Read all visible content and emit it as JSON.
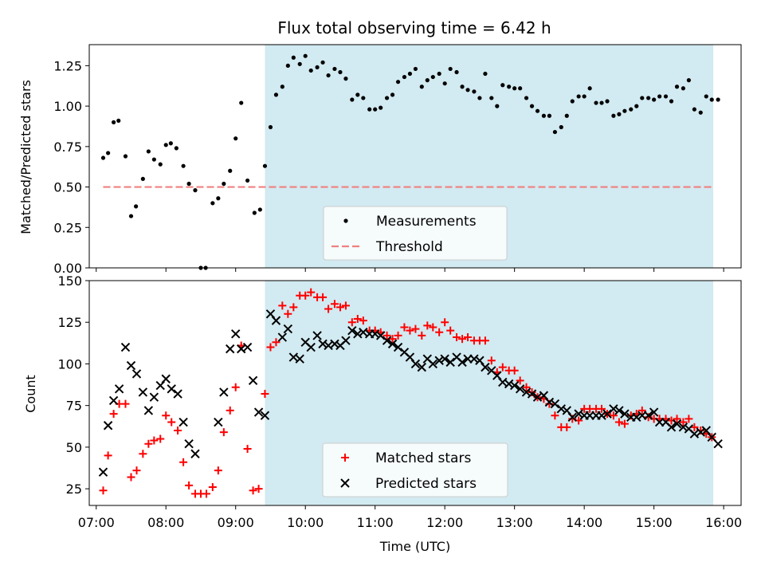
{
  "title": "Flux total observing time = 6.42 h",
  "colors": {
    "shade": "#add8e6",
    "threshold": "#f08080",
    "matched": "#ff0000",
    "predicted": "#000000",
    "measurement": "#000000"
  },
  "chart_data": [
    {
      "type": "scatter",
      "panel": "top",
      "ylabel": "Matched/Predicted stars",
      "xlim": [
        6.9,
        16.25
      ],
      "ylim": [
        0,
        1.38
      ],
      "yticks": [
        0.0,
        0.25,
        0.5,
        0.75,
        1.0,
        1.25
      ],
      "ytick_labels": [
        "0.00",
        "0.25",
        "0.50",
        "0.75",
        "1.00",
        "1.25"
      ],
      "shaded_span": [
        9.42,
        15.85
      ],
      "threshold": {
        "name": "Threshold",
        "y": 0.5,
        "x": [
          7.1,
          15.85
        ]
      },
      "legend": {
        "position": "lower-center",
        "entries": [
          "Measurements",
          "Threshold"
        ]
      },
      "series": [
        {
          "name": "Measurements",
          "marker": "dot",
          "x": [
            7.1,
            7.17,
            7.25,
            7.32,
            7.42,
            7.5,
            7.57,
            7.67,
            7.75,
            7.83,
            7.92,
            8.0,
            8.07,
            8.15,
            8.25,
            8.33,
            8.42,
            8.5,
            8.57,
            8.67,
            8.75,
            8.83,
            8.92,
            9.0,
            9.08,
            9.17,
            9.27,
            9.35,
            9.42,
            9.5,
            9.58,
            9.67,
            9.75,
            9.83,
            9.92,
            10.0,
            10.08,
            10.17,
            10.25,
            10.33,
            10.42,
            10.5,
            10.58,
            10.67,
            10.75,
            10.83,
            10.92,
            11.0,
            11.08,
            11.17,
            11.25,
            11.33,
            11.42,
            11.5,
            11.58,
            11.67,
            11.75,
            11.83,
            11.92,
            12.0,
            12.08,
            12.17,
            12.25,
            12.33,
            12.42,
            12.5,
            12.58,
            12.67,
            12.75,
            12.83,
            12.92,
            13.0,
            13.08,
            13.17,
            13.25,
            13.33,
            13.42,
            13.5,
            13.58,
            13.67,
            13.75,
            13.83,
            13.92,
            14.0,
            14.08,
            14.17,
            14.25,
            14.33,
            14.42,
            14.5,
            14.58,
            14.67,
            14.75,
            14.83,
            14.92,
            15.0,
            15.08,
            15.17,
            15.25,
            15.33,
            15.42,
            15.5,
            15.58,
            15.67,
            15.75,
            15.83,
            15.92
          ],
          "y": [
            0.68,
            0.71,
            0.9,
            0.91,
            0.69,
            0.32,
            0.38,
            0.55,
            0.72,
            0.67,
            0.64,
            0.76,
            0.77,
            0.74,
            0.63,
            0.52,
            0.48,
            0.0,
            0.0,
            0.4,
            0.43,
            0.52,
            0.6,
            0.8,
            1.02,
            0.54,
            0.34,
            0.36,
            0.63,
            0.87,
            1.07,
            1.12,
            1.25,
            1.3,
            1.26,
            1.31,
            1.22,
            1.24,
            1.27,
            1.19,
            1.23,
            1.21,
            1.17,
            1.04,
            1.07,
            1.05,
            0.98,
            0.98,
            0.99,
            1.05,
            1.07,
            1.15,
            1.18,
            1.2,
            1.23,
            1.12,
            1.16,
            1.18,
            1.2,
            1.14,
            1.23,
            1.21,
            1.12,
            1.1,
            1.09,
            1.05,
            1.2,
            1.05,
            1.0,
            1.13,
            1.12,
            1.11,
            1.11,
            1.05,
            1.0,
            0.97,
            0.94,
            0.94,
            0.84,
            0.87,
            0.94,
            1.03,
            1.06,
            1.06,
            1.11,
            1.02,
            1.02,
            1.03,
            0.94,
            0.95,
            0.97,
            0.98,
            1.0,
            1.05,
            1.05,
            1.04,
            1.06,
            1.06,
            1.03,
            1.12,
            1.11,
            1.16,
            0.98,
            0.96,
            1.06,
            1.04,
            1.04
          ]
        }
      ]
    },
    {
      "type": "scatter",
      "panel": "bottom",
      "ylabel": "Count",
      "xlabel": "Time (UTC)",
      "xlim": [
        6.9,
        16.25
      ],
      "ylim": [
        15,
        150
      ],
      "yticks": [
        25,
        50,
        75,
        100,
        125,
        150
      ],
      "xticks": [
        7,
        8,
        9,
        10,
        11,
        12,
        13,
        14,
        15,
        16
      ],
      "xtick_labels": [
        "07:00",
        "08:00",
        "09:00",
        "10:00",
        "11:00",
        "12:00",
        "13:00",
        "14:00",
        "15:00",
        "16:00"
      ],
      "shaded_span": [
        9.42,
        15.85
      ],
      "legend": {
        "position": "lower-center",
        "entries": [
          "Matched stars",
          "Predicted stars"
        ]
      },
      "series": [
        {
          "name": "Matched stars",
          "marker": "plus",
          "x": [
            7.1,
            7.17,
            7.25,
            7.33,
            7.42,
            7.5,
            7.58,
            7.67,
            7.75,
            7.83,
            7.92,
            8.0,
            8.08,
            8.17,
            8.25,
            8.33,
            8.42,
            8.5,
            8.58,
            8.67,
            8.75,
            8.83,
            8.92,
            9.0,
            9.08,
            9.17,
            9.25,
            9.33,
            9.42,
            9.5,
            9.58,
            9.67,
            9.75,
            9.83,
            9.92,
            10.0,
            10.08,
            10.17,
            10.25,
            10.33,
            10.42,
            10.5,
            10.58,
            10.67,
            10.75,
            10.83,
            10.92,
            11.0,
            11.08,
            11.17,
            11.25,
            11.33,
            11.42,
            11.5,
            11.58,
            11.67,
            11.75,
            11.83,
            11.92,
            12.0,
            12.08,
            12.17,
            12.25,
            12.33,
            12.42,
            12.5,
            12.58,
            12.67,
            12.75,
            12.83,
            12.92,
            13.0,
            13.08,
            13.17,
            13.25,
            13.33,
            13.42,
            13.5,
            13.58,
            13.67,
            13.75,
            13.83,
            13.92,
            14.0,
            14.08,
            14.17,
            14.25,
            14.33,
            14.42,
            14.5,
            14.58,
            14.67,
            14.75,
            14.83,
            14.92,
            15.0,
            15.08,
            15.17,
            15.25,
            15.33,
            15.42,
            15.5,
            15.58,
            15.67,
            15.75,
            15.83
          ],
          "y": [
            24,
            45,
            70,
            76,
            76,
            32,
            36,
            46,
            52,
            54,
            55,
            69,
            65,
            60,
            41,
            27,
            22,
            22,
            22,
            26,
            36,
            59,
            72,
            86,
            111,
            49,
            24,
            25,
            82,
            110,
            113,
            135,
            130,
            134,
            141,
            141,
            143,
            140,
            140,
            133,
            136,
            134,
            135,
            125,
            127,
            126,
            120,
            120,
            119,
            117,
            115,
            117,
            122,
            120,
            121,
            117,
            123,
            122,
            119,
            125,
            120,
            116,
            115,
            116,
            114,
            114,
            114,
            102,
            95,
            98,
            96,
            96,
            90,
            86,
            83,
            80,
            79,
            76,
            69,
            62,
            62,
            67,
            66,
            73,
            73,
            73,
            73,
            70,
            69,
            65,
            64,
            69,
            70,
            72,
            68,
            67,
            67,
            67,
            66,
            67,
            65,
            67,
            62,
            60,
            58,
            56
          ]
        },
        {
          "name": "Predicted stars",
          "marker": "x",
          "x": [
            7.1,
            7.17,
            7.25,
            7.33,
            7.42,
            7.5,
            7.58,
            7.67,
            7.75,
            7.83,
            7.92,
            8.0,
            8.08,
            8.17,
            8.25,
            8.33,
            8.42,
            8.75,
            8.83,
            8.92,
            9.0,
            9.08,
            9.17,
            9.25,
            9.33,
            9.42,
            9.5,
            9.58,
            9.67,
            9.75,
            9.83,
            9.92,
            10.0,
            10.08,
            10.17,
            10.25,
            10.33,
            10.42,
            10.5,
            10.58,
            10.67,
            10.75,
            10.83,
            10.92,
            11.0,
            11.08,
            11.17,
            11.25,
            11.33,
            11.42,
            11.5,
            11.58,
            11.67,
            11.75,
            11.83,
            11.92,
            12.0,
            12.08,
            12.17,
            12.25,
            12.33,
            12.42,
            12.5,
            12.58,
            12.67,
            12.75,
            12.83,
            12.92,
            13.0,
            13.08,
            13.17,
            13.25,
            13.33,
            13.42,
            13.5,
            13.58,
            13.67,
            13.75,
            13.83,
            13.92,
            14.0,
            14.08,
            14.17,
            14.25,
            14.33,
            14.42,
            14.5,
            14.58,
            14.67,
            14.75,
            14.83,
            14.92,
            15.0,
            15.08,
            15.17,
            15.25,
            15.33,
            15.42,
            15.5,
            15.58,
            15.67,
            15.75,
            15.83,
            15.92
          ],
          "y": [
            35,
            63,
            78,
            85,
            110,
            99,
            94,
            83,
            72,
            80,
            87,
            91,
            85,
            82,
            65,
            52,
            46,
            65,
            83,
            109,
            118,
            109,
            110,
            90,
            71,
            69,
            130,
            126,
            116,
            121,
            104,
            103,
            113,
            110,
            117,
            112,
            111,
            112,
            111,
            114,
            120,
            118,
            119,
            118,
            118,
            117,
            114,
            112,
            110,
            107,
            104,
            100,
            98,
            103,
            100,
            102,
            103,
            101,
            104,
            101,
            103,
            103,
            102,
            98,
            96,
            93,
            89,
            88,
            87,
            85,
            83,
            82,
            80,
            81,
            77,
            76,
            73,
            72,
            68,
            70,
            69,
            69,
            69,
            69,
            70,
            73,
            72,
            70,
            68,
            68,
            69,
            69,
            71,
            65,
            65,
            62,
            64,
            62,
            61,
            58,
            59,
            60,
            56,
            52
          ]
        }
      ]
    }
  ]
}
